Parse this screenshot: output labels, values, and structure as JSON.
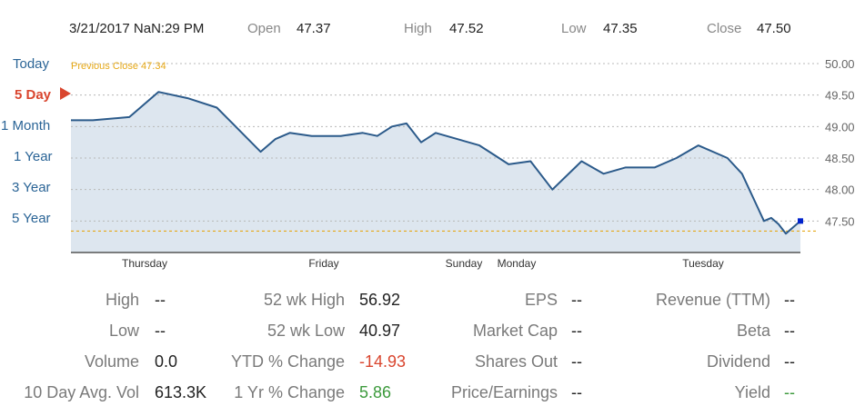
{
  "header": {
    "datetime": "3/21/2017 NaN:29 PM",
    "open_label": "Open",
    "open_value": "47.37",
    "high_label": "High",
    "high_value": "47.52",
    "low_label": "Low",
    "low_value": "47.35",
    "close_label": "Close",
    "close_value": "47.50"
  },
  "ranges": [
    "Today",
    "5 Day",
    "1 Month",
    "1 Year",
    "3 Year",
    "5 Year"
  ],
  "active_range": "5 Day",
  "colors": {
    "line": "#2b5a8a",
    "fill": "#dde6ef",
    "prev_close": "#e6a817",
    "active": "#d9452e",
    "link": "#2a6496"
  },
  "chart_data": {
    "type": "area",
    "ylim": [
      47.0,
      50.0
    ],
    "y_ticks": [
      "50.00",
      "49.50",
      "49.00",
      "48.50",
      "48.00",
      "47.50"
    ],
    "x_labels": [
      "Thursday",
      "Friday",
      "Sunday",
      "Monday",
      "Tuesday"
    ],
    "previous_close": {
      "label": "Previous Close 47.34",
      "value": 47.34
    },
    "series": [
      {
        "x": [
          0,
          3,
          8,
          12,
          16,
          20,
          23,
          26,
          28,
          30,
          33,
          35,
          37,
          40,
          42,
          44,
          46,
          48,
          50,
          53,
          56,
          58,
          60,
          63,
          66,
          70,
          73,
          76,
          80,
          83,
          86,
          90,
          92,
          94,
          95,
          96,
          97,
          98,
          100
        ],
        "y": [
          49.1,
          49.1,
          49.15,
          49.55,
          49.45,
          49.3,
          48.95,
          48.6,
          48.8,
          48.9,
          48.85,
          48.85,
          48.85,
          48.9,
          48.85,
          49.0,
          49.05,
          48.75,
          48.9,
          48.8,
          48.7,
          48.55,
          48.4,
          48.45,
          48.0,
          48.45,
          48.25,
          48.35,
          48.35,
          48.5,
          48.7,
          48.5,
          48.25,
          47.75,
          47.5,
          47.55,
          47.45,
          47.3,
          47.5
        ]
      }
    ]
  },
  "stats": {
    "col1": [
      {
        "label": "High",
        "value": "--"
      },
      {
        "label": "Low",
        "value": "--"
      },
      {
        "label": "Volume",
        "value": "0.0"
      },
      {
        "label": "10 Day Avg. Vol",
        "value": "613.3K"
      }
    ],
    "col2": [
      {
        "label": "52 wk High",
        "value": "56.92"
      },
      {
        "label": "52 wk Low",
        "value": "40.97"
      },
      {
        "label": "YTD % Change",
        "value": "-14.93"
      },
      {
        "label": "1 Yr % Change",
        "value": "5.86"
      }
    ],
    "col3": [
      {
        "label": "EPS",
        "value": "--"
      },
      {
        "label": "Market Cap",
        "value": "--"
      },
      {
        "label": "Shares Out",
        "value": "--"
      },
      {
        "label": "Price/Earnings",
        "value": "--"
      }
    ],
    "col4": [
      {
        "label": "Revenue (TTM)",
        "value": "--"
      },
      {
        "label": "Beta",
        "value": "--"
      },
      {
        "label": "Dividend",
        "value": "--"
      },
      {
        "label": "Yield",
        "value": "--"
      }
    ]
  }
}
